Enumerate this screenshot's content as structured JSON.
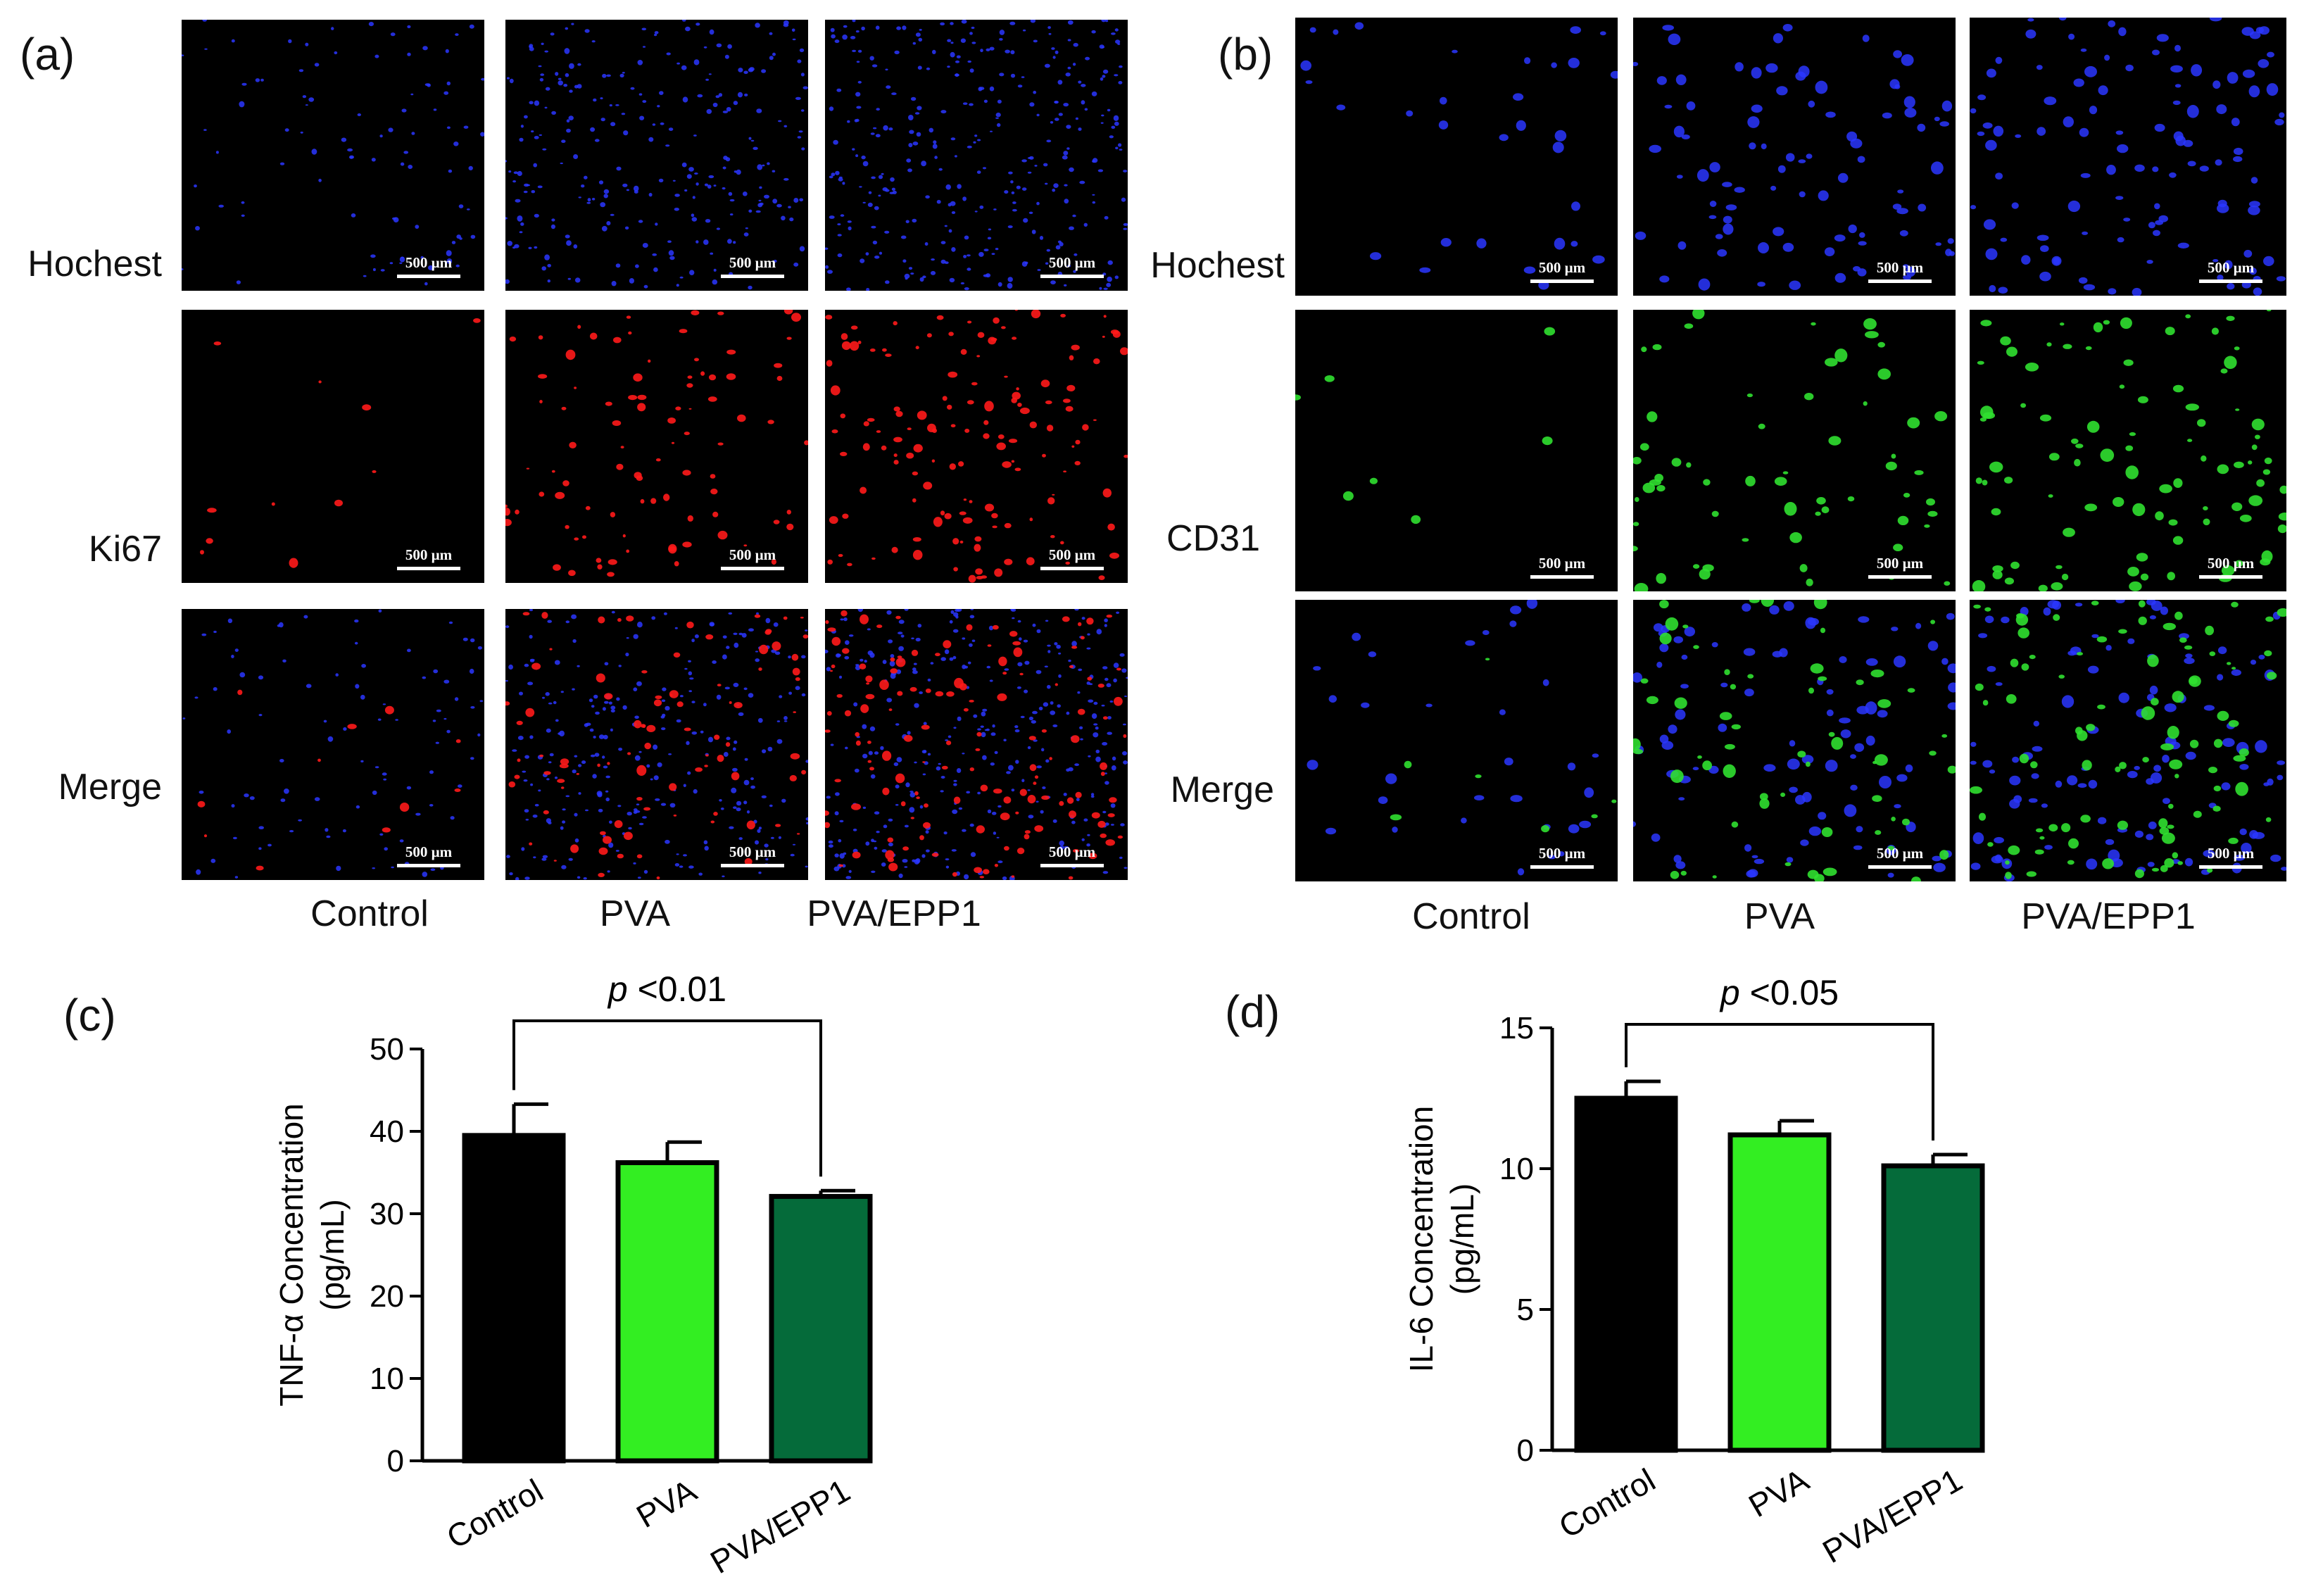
{
  "panels": {
    "a": {
      "label": "(a)",
      "rows": [
        "Hochest",
        "Ki67",
        "Merge"
      ],
      "cols": [
        "Control",
        "PVA",
        "PVA/EPP1"
      ],
      "scale": "500 µm"
    },
    "b": {
      "label": "(b)",
      "rows": [
        "Hochest",
        "CD31",
        "Merge"
      ],
      "cols": [
        "Control",
        "PVA",
        "PVA/EPP1"
      ],
      "scale": "500 µm"
    },
    "c": {
      "label": "(c)"
    },
    "d": {
      "label": "(d)"
    }
  },
  "chart_data": [
    {
      "type": "bar",
      "ylabel": "TNF-α Concentration\n(pg/mL)",
      "ylabel_line1": "TNF-α Concentration",
      "ylabel_line2": "(pg/mL)",
      "categories": [
        "Control",
        "PVA",
        "PVA/EPP1"
      ],
      "values": [
        39.5,
        36.2,
        32.1
      ],
      "errors": [
        3.8,
        2.5,
        0.7
      ],
      "colors": [
        "#000000",
        "#33ee22",
        "#056b3a"
      ],
      "ylim": [
        0,
        50
      ],
      "yticks": [
        0,
        10,
        20,
        30,
        40,
        50
      ],
      "annotation": {
        "italic": "p",
        "text": " <0.01",
        "from": 0,
        "to": 2
      }
    },
    {
      "type": "bar",
      "ylabel_line1": "IL-6 Concentration",
      "ylabel_line2": "(pg/mL)",
      "categories": [
        "Control",
        "PVA",
        "PVA/EPP1"
      ],
      "values": [
        12.5,
        11.2,
        10.1
      ],
      "errors": [
        0.6,
        0.5,
        0.4
      ],
      "colors": [
        "#000000",
        "#33ee22",
        "#056b3a"
      ],
      "ylim": [
        0,
        15
      ],
      "yticks": [
        0,
        5,
        10,
        15
      ],
      "annotation": {
        "italic": "p",
        "text": " <0.05",
        "from": 0,
        "to": 2
      }
    }
  ]
}
